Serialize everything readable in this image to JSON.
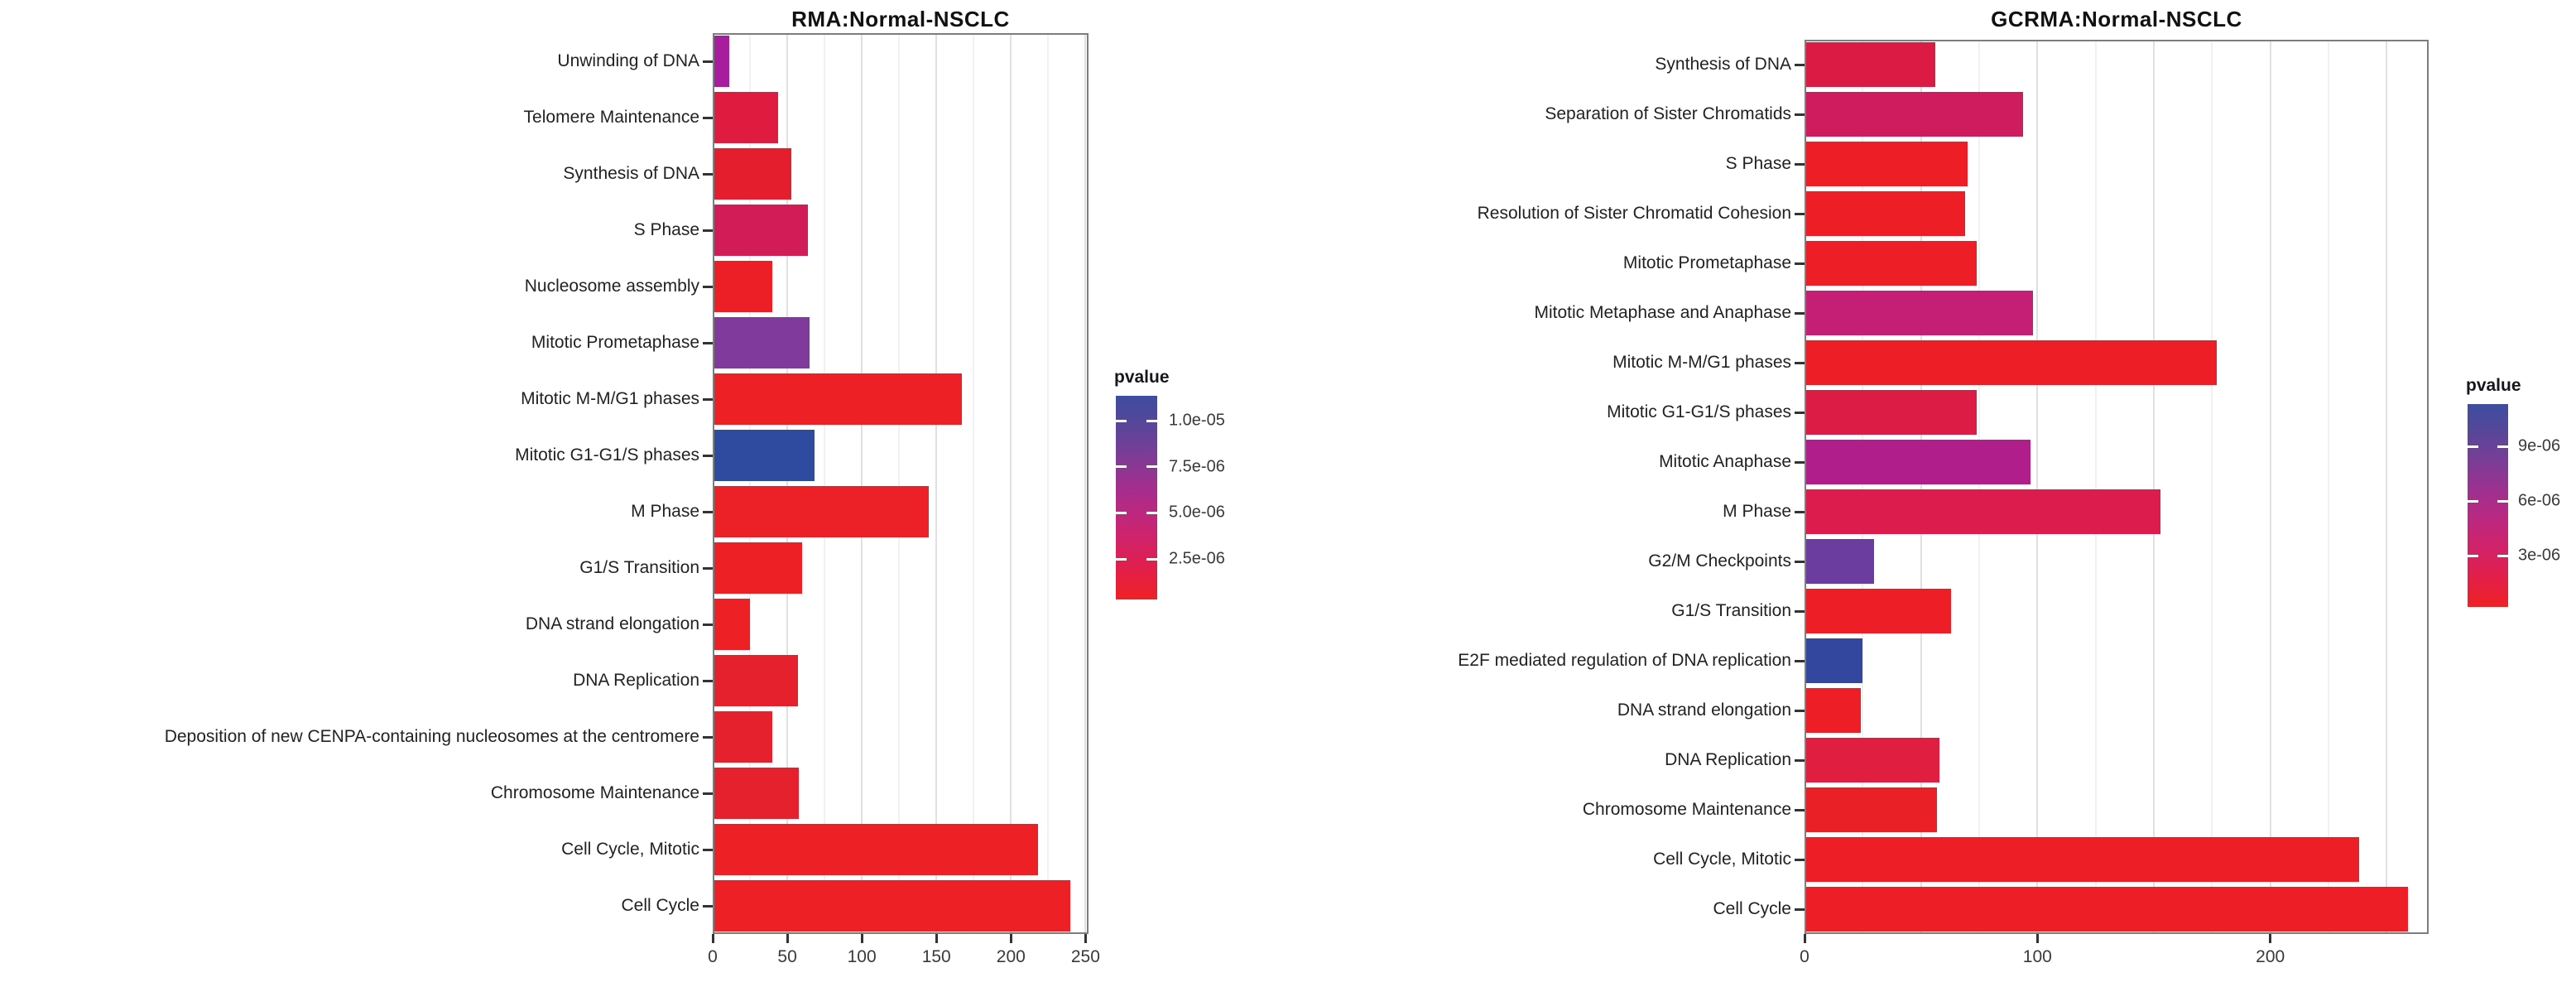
{
  "chart_data": [
    {
      "type": "bar",
      "orientation": "horizontal",
      "title": "RMA:Normal-NSCLC",
      "xlabel": "",
      "ylabel": "",
      "x_ticks": [
        0,
        50,
        100,
        150,
        200,
        250
      ],
      "x_max": 252,
      "grid_minor": 25,
      "grid_major": 50,
      "grid": true,
      "legend_position": "right",
      "legend": {
        "title": "pvalue",
        "scale_max": 1.135e-05,
        "scale_min": 3e-07,
        "ticks": [
          {
            "label": "1.0e-05",
            "value": 1e-05
          },
          {
            "label": "7.5e-06",
            "value": 7.5e-06
          },
          {
            "label": "5.0e-06",
            "value": 5e-06
          },
          {
            "label": "2.5e-06",
            "value": 2.5e-06
          }
        ]
      },
      "categories": [
        "Unwinding of DNA",
        "Telomere Maintenance",
        "Synthesis of DNA",
        "S Phase",
        "Nucleosome assembly",
        "Mitotic Prometaphase",
        "Mitotic M-M/G1 phases",
        "Mitotic G1-G1/S phases",
        "M Phase",
        "G1/S Transition",
        "DNA strand elongation",
        "DNA Replication",
        "Deposition of new CENPA-containing nucleosomes at the centromere",
        "Chromosome Maintenance",
        "Cell Cycle, Mitotic",
        "Cell Cycle"
      ],
      "values": [
        11,
        44,
        53,
        64,
        40,
        65,
        167,
        68,
        145,
        60,
        25,
        57,
        40,
        58,
        218,
        240
      ],
      "colors": [
        "#A81C9E",
        "#DF1C3F",
        "#E51E2D",
        "#D21C58",
        "#EC1F27",
        "#7F3A9C",
        "#EC2025",
        "#2F4BA0",
        "#EC2027",
        "#EC2025",
        "#EC2025",
        "#E6212E",
        "#E6212E",
        "#E6212E",
        "#EC2025",
        "#EC2025"
      ]
    },
    {
      "type": "bar",
      "orientation": "horizontal",
      "title": "GCRMA:Normal-NSCLC",
      "xlabel": "",
      "ylabel": "",
      "x_ticks": [
        0,
        100,
        200
      ],
      "x_max": 268,
      "grid_minor": 25,
      "grid_major": 50,
      "grid": true,
      "legend_position": "right",
      "legend": {
        "title": "pvalue",
        "scale_max": 1.132e-05,
        "scale_min": 1.9e-07,
        "ticks": [
          {
            "label": "9e-06",
            "value": 9e-06
          },
          {
            "label": "6e-06",
            "value": 6e-06
          },
          {
            "label": "3e-06",
            "value": 3e-06
          }
        ]
      },
      "categories": [
        "Synthesis of DNA",
        "Separation of Sister Chromatids",
        "S Phase",
        "Resolution of Sister Chromatid Cohesion",
        "Mitotic Prometaphase",
        "Mitotic Metaphase and Anaphase",
        "Mitotic M-M/G1 phases",
        "Mitotic G1-G1/S phases",
        "Mitotic Anaphase",
        "M Phase",
        "G2/M Checkpoints",
        "G1/S Transition",
        "E2F mediated regulation of DNA replication",
        "DNA strand elongation",
        "DNA Replication",
        "Chromosome Maintenance",
        "Cell Cycle, Mitotic",
        "Cell Cycle"
      ],
      "values": [
        56,
        94,
        70,
        69,
        74,
        98,
        177,
        74,
        97,
        153,
        30,
        63,
        25,
        24,
        58,
        57,
        238,
        259
      ],
      "colors": [
        "#DC1B45",
        "#CE1C5F",
        "#EE1E26",
        "#EE1E26",
        "#EE1E26",
        "#C41F74",
        "#EE1E26",
        "#DC1C44",
        "#B01E8C",
        "#DC1C4C",
        "#6A3D9E",
        "#EE1E26",
        "#33479F",
        "#EE1E26",
        "#DF1E40",
        "#E92127",
        "#EE1E26",
        "#EE1E26"
      ]
    }
  ],
  "legend_gradient": [
    "#3D4DA0",
    "#584699",
    "#7B3D96",
    "#9E3090",
    "#BC2880",
    "#D22268",
    "#E21F48",
    "#EF2125"
  ]
}
